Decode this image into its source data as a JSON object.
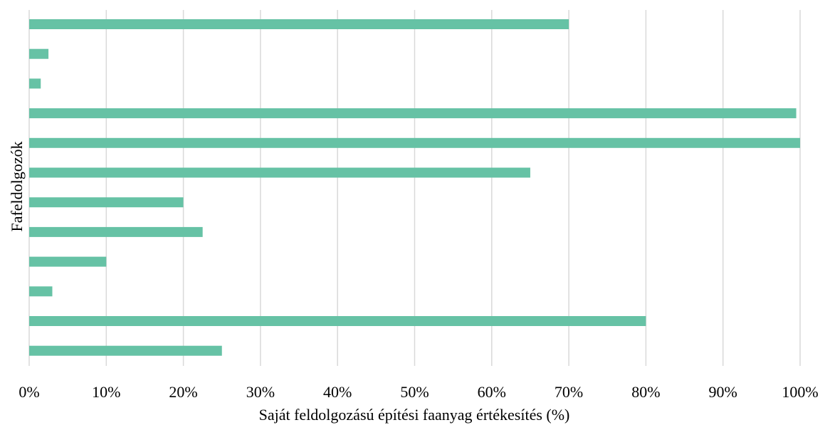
{
  "chart_data": {
    "type": "bar",
    "orientation": "horizontal",
    "title": "",
    "xlabel": "Saját feldolgozású építési faanyag értékesítés (%)",
    "ylabel": "Fafeldolgozók",
    "xlim": [
      0,
      100
    ],
    "x_ticks": [
      0,
      10,
      20,
      30,
      40,
      50,
      60,
      70,
      80,
      90,
      100
    ],
    "x_tick_labels": [
      "0%",
      "10%",
      "20%",
      "30%",
      "40%",
      "50%",
      "60%",
      "70%",
      "80%",
      "90%",
      "100%"
    ],
    "grid": "vertical",
    "legend": "none",
    "bar_color": "#66c2a5",
    "grid_color": "#d9d9d9",
    "values": [
      70,
      2.5,
      1.5,
      99.5,
      100,
      65,
      20,
      22.5,
      10,
      3,
      80,
      25
    ]
  }
}
